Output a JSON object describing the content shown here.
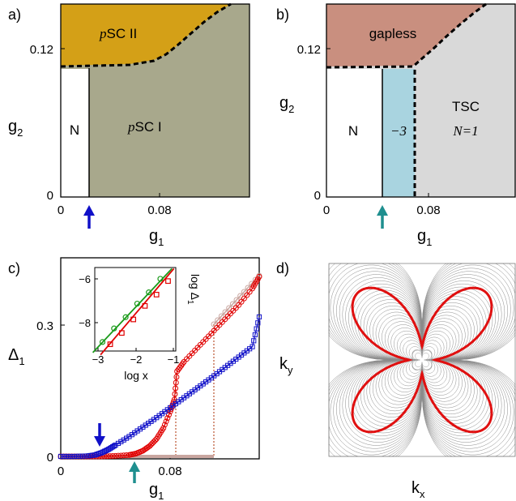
{
  "colors": {
    "psc2": "#d4a017",
    "psc1": "#a8a88c",
    "gapless": "#c98f7f",
    "topo": "#a9d4e0",
    "tsc": "#d9d9d9",
    "blue": "#1010c8",
    "teal": "#1f8f8f",
    "red": "#e00000",
    "green": "#1a9a1a"
  },
  "panel_a": {
    "letter": "a)",
    "xlabel": "g",
    "xlabel_sub": "1",
    "ylabel": "g",
    "ylabel_sub": "2",
    "xticks": [
      "0",
      "0.08"
    ],
    "yticks": [
      "0",
      "0.12"
    ],
    "regions": {
      "n": "N",
      "psc1_p": "p",
      "psc1_rest": "SC I",
      "psc2_p": "p",
      "psc2_rest": "SC II"
    }
  },
  "panel_b": {
    "letter": "b)",
    "xlabel": "g",
    "xlabel_sub": "1",
    "ylabel": "g",
    "ylabel_sub": "2",
    "xticks": [
      "0",
      "0.08"
    ],
    "yticks": [
      "0",
      "0.12"
    ],
    "regions": {
      "n": "N",
      "topo": "−3",
      "tsc": "TSC",
      "tsc_n": "N=1",
      "gapless": "gapless"
    }
  },
  "panel_c": {
    "letter": "c)",
    "xlabel": "g",
    "xlabel_sub": "1",
    "ylabel": "Δ",
    "ylabel_sub": "1",
    "xticks": [
      "0",
      "0.08"
    ],
    "yticks": [
      "0",
      "0.3"
    ],
    "inset": {
      "xlabel": "log x",
      "ylabel": "log Δ",
      "ylabel_sub": "1",
      "xticks": [
        "−3",
        "−2",
        "−1"
      ],
      "yticks": [
        "−6",
        "−8"
      ]
    }
  },
  "panel_d": {
    "letter": "d)",
    "xlabel": "k",
    "xlabel_sub": "x",
    "ylabel": "k",
    "ylabel_sub": "y"
  },
  "chart_data": [
    {
      "type": "area",
      "panel": "a",
      "xlabel": "g1",
      "ylabel": "g2",
      "xlim": [
        0,
        0.145
      ],
      "ylim": [
        0,
        0.145
      ],
      "regions": [
        "N",
        "pSC I",
        "pSC II"
      ],
      "n_boundary_g1": 0.022,
      "psc2_boundary": {
        "g1": [
          0,
          0.03,
          0.06,
          0.075,
          0.09,
          0.105,
          0.115,
          0.125
        ],
        "g2": [
          0.108,
          0.108,
          0.11,
          0.116,
          0.127,
          0.137,
          0.142,
          0.146
        ]
      }
    },
    {
      "type": "area",
      "panel": "b",
      "xlabel": "g1",
      "ylabel": "g2",
      "xlim": [
        0,
        0.145
      ],
      "ylim": [
        0,
        0.145
      ],
      "regions": [
        "N",
        "−3",
        "TSC N=1",
        "gapless"
      ],
      "n_boundary_g1": 0.043,
      "topo_boundary_g1": 0.067,
      "gapless_boundary": {
        "g1": [
          0,
          0.04,
          0.068,
          0.08,
          0.095,
          0.11,
          0.122
        ],
        "g2": [
          0.108,
          0.108,
          0.109,
          0.118,
          0.13,
          0.14,
          0.146
        ]
      }
    },
    {
      "type": "line",
      "panel": "c",
      "xlabel": "g1",
      "ylabel": "Δ1",
      "xlim": [
        0,
        0.145
      ],
      "ylim": [
        0,
        0.42
      ],
      "series": [
        {
          "color": "red",
          "marker": "circle",
          "x": [
            0.0,
            0.01,
            0.02,
            0.03,
            0.04,
            0.05,
            0.055,
            0.06,
            0.065,
            0.07,
            0.075,
            0.08,
            0.083,
            0.085,
            0.09,
            0.1,
            0.11,
            0.12,
            0.13,
            0.14,
            0.145
          ],
          "y": [
            0,
            0,
            0,
            0,
            0.001,
            0.003,
            0.006,
            0.012,
            0.022,
            0.037,
            0.06,
            0.095,
            0.12,
            0.18,
            0.2,
            0.23,
            0.26,
            0.29,
            0.32,
            0.355,
            0.38
          ]
        },
        {
          "color": "blue",
          "marker": "square",
          "x": [
            0.0,
            0.01,
            0.02,
            0.025,
            0.03,
            0.035,
            0.04,
            0.05,
            0.06,
            0.07,
            0.08,
            0.09,
            0.1,
            0.11,
            0.12,
            0.13,
            0.14,
            0.145
          ],
          "y": [
            0,
            0,
            0.001,
            0.003,
            0.008,
            0.015,
            0.024,
            0.042,
            0.062,
            0.082,
            0.103,
            0.124,
            0.145,
            0.166,
            0.188,
            0.21,
            0.232,
            0.295
          ]
        }
      ],
      "inset": {
        "xlabel": "log x",
        "ylabel": "log Δ1",
        "xlim": [
          -3,
          -0.9
        ],
        "ylim": [
          -9.3,
          -5.6
        ],
        "series": [
          {
            "color": "green",
            "marker": "circle",
            "x": [
              -2.8,
              -2.5,
              -2.2,
              -1.9,
              -1.6,
              -1.3
            ],
            "y": [
              -8.9,
              -8.3,
              -7.8,
              -7.2,
              -6.7,
              -6.1
            ]
          },
          {
            "color": "red",
            "marker": "square",
            "x": [
              -2.6,
              -2.3,
              -2.0,
              -1.7,
              -1.4,
              -1.1
            ],
            "y": [
              -9.0,
              -8.5,
              -7.9,
              -7.3,
              -6.8,
              -6.2
            ]
          }
        ]
      }
    },
    {
      "type": "heatmap",
      "panel": "d",
      "xlabel": "kx",
      "ylabel": "ky",
      "description_of_marks": "gray contour lines of a band energy with a red four-lobed Fermi surface"
    }
  ]
}
